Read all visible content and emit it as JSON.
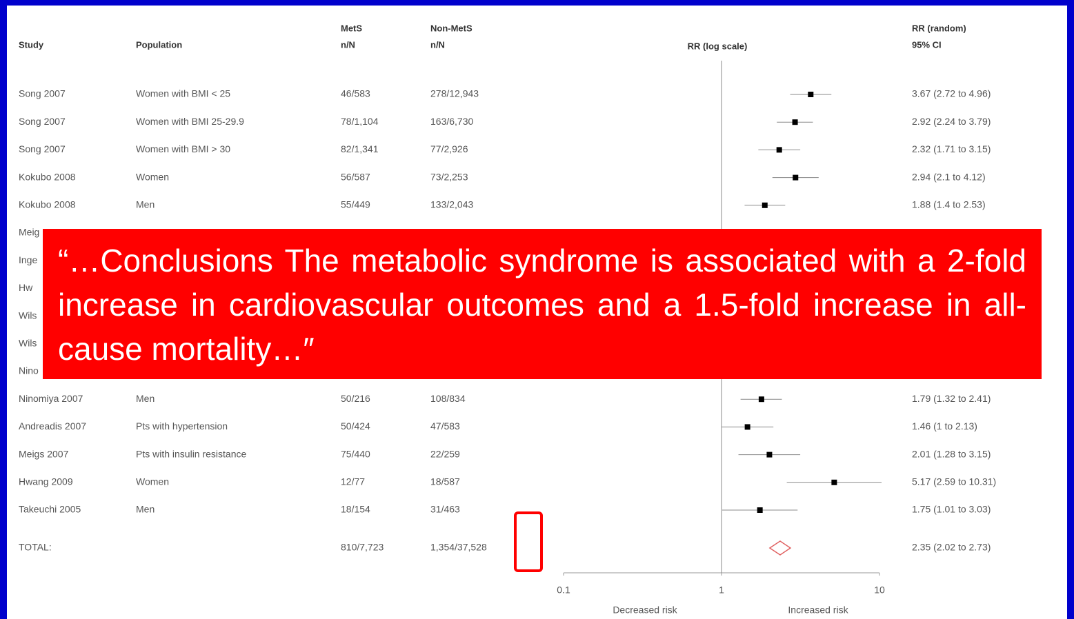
{
  "chart_data": {
    "type": "forest",
    "headers": {
      "study": "Study",
      "population": "Population",
      "mets": [
        "MetS",
        "n/N"
      ],
      "nonmets": [
        "Non-MetS",
        "n/N"
      ],
      "plot": "RR (log scale)",
      "rr": [
        "RR (random)",
        "95% CI"
      ]
    },
    "rows": [
      {
        "study": "Song 2007",
        "population": "Women with BMI < 25",
        "mets": "46/583",
        "nonmets": "278/12,943",
        "rr": 3.67,
        "lo": 2.72,
        "hi": 4.96,
        "ci_label": "3.67 (2.72 to 4.96)"
      },
      {
        "study": "Song 2007",
        "population": "Women with BMI 25-29.9",
        "mets": "78/1,104",
        "nonmets": "163/6,730",
        "rr": 2.92,
        "lo": 2.24,
        "hi": 3.79,
        "ci_label": "2.92 (2.24 to 3.79)"
      },
      {
        "study": "Song 2007",
        "population": "Women with BMI > 30",
        "mets": "82/1,341",
        "nonmets": "77/2,926",
        "rr": 2.32,
        "lo": 1.71,
        "hi": 3.15,
        "ci_label": "2.32 (1.71 to 3.15)"
      },
      {
        "study": "Kokubo 2008",
        "population": "Women",
        "mets": "56/587",
        "nonmets": "73/2,253",
        "rr": 2.94,
        "lo": 2.1,
        "hi": 4.12,
        "ci_label": "2.94 (2.1 to 4.12)"
      },
      {
        "study": "Kokubo 2008",
        "population": "Men",
        "mets": "55/449",
        "nonmets": "133/2,043",
        "rr": 1.88,
        "lo": 1.4,
        "hi": 2.53,
        "ci_label": "1.88 (1.4 to 2.53)"
      },
      {
        "study": "Ninomiya 2007",
        "population": "Men",
        "mets": "50/216",
        "nonmets": "108/834",
        "rr": 1.79,
        "lo": 1.32,
        "hi": 2.41,
        "ci_label": "1.79 (1.32 to 2.41)"
      },
      {
        "study": "Andreadis 2007",
        "population": "Pts with hypertension",
        "mets": "50/424",
        "nonmets": "47/583",
        "rr": 1.46,
        "lo": 1,
        "hi": 2.13,
        "ci_label": "1.46 (1 to 2.13)"
      },
      {
        "study": "Meigs 2007",
        "population": "Pts with insulin resistance",
        "mets": "75/440",
        "nonmets": "22/259",
        "rr": 2.01,
        "lo": 1.28,
        "hi": 3.15,
        "ci_label": "2.01 (1.28 to 3.15)"
      },
      {
        "study": "Hwang 2009",
        "population": "Women",
        "mets": "12/77",
        "nonmets": "18/587",
        "rr": 5.17,
        "lo": 2.59,
        "hi": 10.31,
        "ci_label": "5.17 (2.59 to 10.31)"
      },
      {
        "study": "Takeuchi 2005",
        "population": "Men",
        "mets": "18/154",
        "nonmets": "31/463",
        "rr": 1.75,
        "lo": 1.01,
        "hi": 3.03,
        "ci_label": "1.75 (1.01 to 3.03)"
      }
    ],
    "obscured_rows": [
      "Meig",
      "Inge",
      "Hw",
      "Wils",
      "Wils",
      "Nino"
    ],
    "total": {
      "study": "TOTAL:",
      "mets": "810/7,723",
      "nonmets": "1,354/37,528",
      "rr": 2.35,
      "lo": 2.02,
      "hi": 2.73,
      "ci_label": "2.35 (2.02 to 2.73)"
    },
    "log_scale": true,
    "xlim": [
      0.1,
      10
    ],
    "xticks": [
      0.1,
      1,
      10
    ],
    "annotations": [
      "Decreased risk",
      "Increased risk"
    ],
    "marker_color": "#000000",
    "total_color": "#e06060"
  },
  "callout": "“…Conclusions The metabolic syndrome is associated with a 2-fold increase in cardiovascular outcomes and a 1.5-fold increase in all-cause mortality…″"
}
